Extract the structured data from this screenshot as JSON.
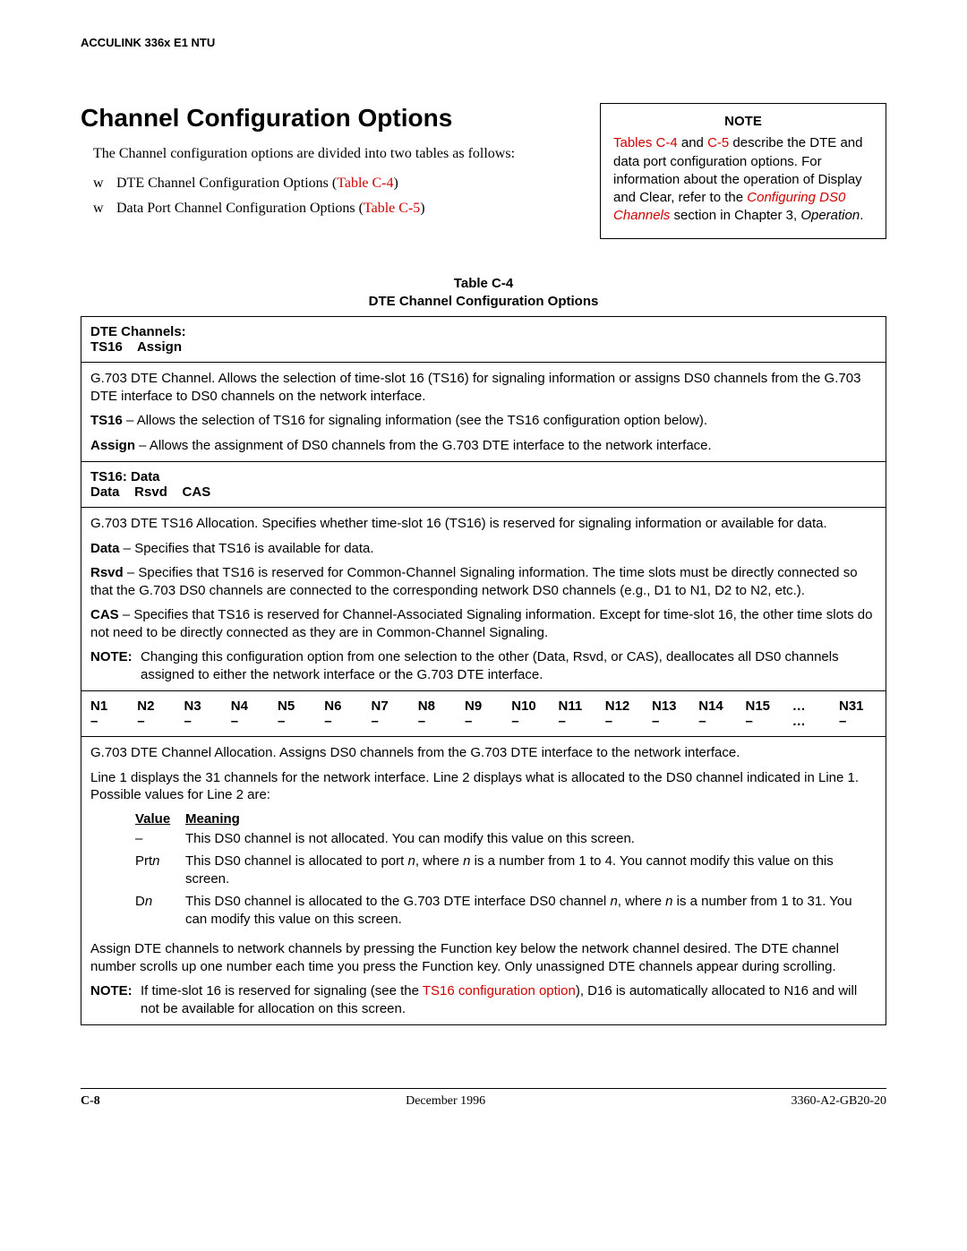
{
  "runningHeader": "ACCULINK 336x E1 NTU",
  "sectionTitle": "Channel Configuration Options",
  "introText": "The Channel configuration options are divided into two tables as follows:",
  "bullets": [
    {
      "text": "DTE Channel Configuration Options (",
      "link": "Table C-4",
      "after": ")"
    },
    {
      "text": "Data Port Channel Configuration Options (",
      "link": "Table C-5",
      "after": ")"
    }
  ],
  "noteBox": {
    "title": "NOTE",
    "link1": "Tables C-4",
    "mid1": " and ",
    "link2": "C-5",
    "mid2": " describe the DTE and data port configuration options. For information about the operation of Display and Clear, refer to the ",
    "link3": "Configuring DS0 Channels",
    "mid3": " section in Chapter 3, ",
    "italic": "Operation",
    "end": "."
  },
  "tableCaption1": "Table C-4",
  "tableCaption2": "DTE Channel Configuration Options",
  "row1": {
    "header": "DTE Channels:\nTS16    Assign",
    "p1": "G.703 DTE Channel. Allows the selection of time-slot 16 (TS16) for signaling information or assigns DS0 channels from the G.703 DTE interface to DS0 channels on the network interface.",
    "p2b": "TS16",
    "p2": " – Allows the selection of TS16 for signaling information (see the TS16 configuration option below).",
    "p3b": "Assign",
    "p3": " – Allows the assignment of DS0 channels from the G.703 DTE interface to the network interface."
  },
  "row2": {
    "header": "TS16: Data\nData    Rsvd    CAS",
    "p1": "G.703 DTE TS16 Allocation. Specifies whether time-slot 16 (TS16) is reserved for signaling information or available for data.",
    "p2b": "Data",
    "p2": " – Specifies that TS16 is available for data.",
    "p3b": "Rsvd",
    "p3": " – Specifies that TS16 is reserved for Common-Channel Signaling information. The time slots must be directly connected so that the G.703 DS0 channels are connected to the corresponding network DS0 channels (e.g., D1 to N1, D2 to N2, etc.).",
    "p4b": "CAS",
    "p4": " – Specifies that TS16 is reserved for Channel-Associated Signaling information. Except for time-slot 16, the other time slots do not need to be directly connected as they are in Common-Channel Signaling.",
    "noteLabel": "NOTE:",
    "noteBody": "Changing this configuration option from one selection to the other (Data, Rsvd, or CAS), deallocates all DS0 channels assigned to either the network interface or the G.703 DTE interface."
  },
  "channels": [
    "N1",
    "N2",
    "N3",
    "N4",
    "N5",
    "N6",
    "N7",
    "N8",
    "N9",
    "N10",
    "N11",
    "N12",
    "N13",
    "N14",
    "N15",
    "…",
    "N31"
  ],
  "dashes": [
    "–",
    "–",
    "–",
    "–",
    "–",
    "–",
    "–",
    "–",
    "–",
    "–",
    "–",
    "–",
    "–",
    "–",
    "–",
    "…",
    "–"
  ],
  "row3": {
    "p1": "G.703 DTE Channel Allocation. Assigns DS0 channels from the G.703 DTE interface to the network interface.",
    "p2": "Line 1 displays the 31 channels for the network interface. Line 2 displays what is allocated to the DS0 channel indicated in Line 1. Possible values for Line 2 are:",
    "vh1": "Value",
    "vh2": "Meaning",
    "v1a": "–",
    "v1b": "This DS0 channel is not allocated. You can modify this value on this screen.",
    "v2a_pre": "Prt",
    "v2a_n": "n",
    "v2b_pre": "This DS0 channel is allocated to port ",
    "v2b_n1": "n",
    "v2b_mid": ", where ",
    "v2b_n2": "n",
    "v2b_end": " is a number from 1 to 4. You cannot modify this value on this screen.",
    "v3a_pre": "D",
    "v3a_n": "n",
    "v3b_pre": "This DS0 channel is allocated to the G.703 DTE interface DS0 channel ",
    "v3b_n1": "n",
    "v3b_mid": ", where ",
    "v3b_n2": "n",
    "v3b_end": " is a number from 1 to 31. You can modify this value on this screen.",
    "p3": "Assign DTE channels to network channels by pressing the Function key below the network channel desired. The DTE channel number scrolls up one number each time you press the Function key. Only unassigned DTE channels appear during scrolling.",
    "noteLabel": "NOTE:",
    "noteBody1": "If time-slot 16 is reserved for signaling (see the ",
    "noteLink": "TS16 configuration option",
    "noteBody2": "), D16 is automatically allocated to N16 and will not be available for allocation on this screen."
  },
  "footer": {
    "pageNum": "C-8",
    "date": "December 1996",
    "docNum": "3360-A2-GB20-20"
  }
}
